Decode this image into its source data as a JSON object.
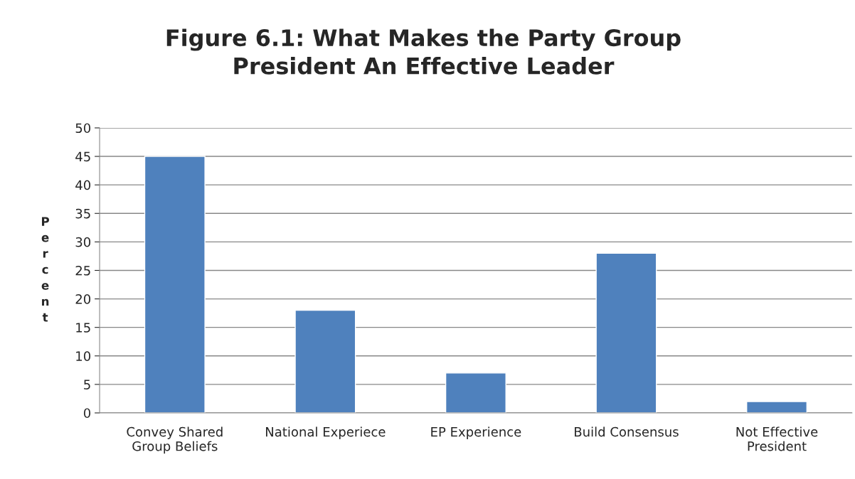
{
  "chart_data": {
    "type": "bar",
    "title": "Figure 6.1: What Makes the Party Group\nPresident An Effective Leader",
    "ylabel": "Percent",
    "categories": [
      "Convey Shared\nGroup Beliefs",
      "National Experiece",
      "EP Experience",
      "Build Consensus",
      "Not Effective\nPresident"
    ],
    "values": [
      45,
      18,
      7,
      28,
      2
    ],
    "color": "#4f81bd",
    "ylim": [
      0,
      50
    ],
    "yticks": [
      0,
      5,
      10,
      15,
      20,
      25,
      30,
      35,
      40,
      45,
      50
    ],
    "grid": "y"
  }
}
